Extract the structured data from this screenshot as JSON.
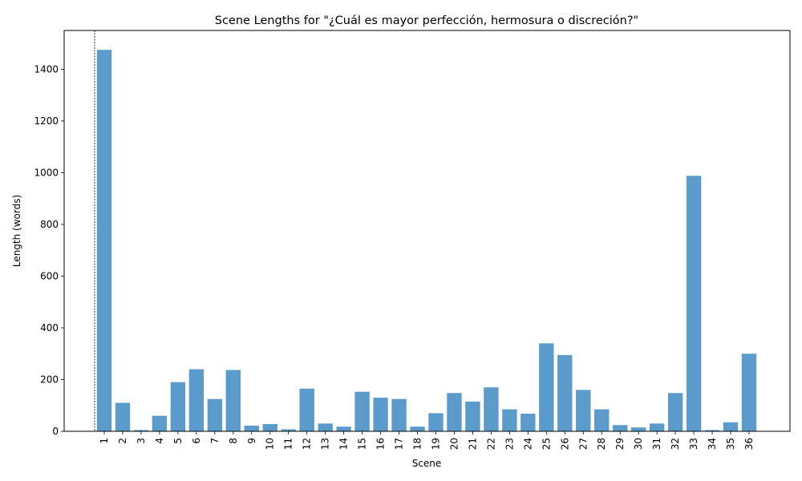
{
  "chart_data": {
    "type": "bar",
    "title": "Scene Lengths for \"¿Cuál es mayor perfección, hermosura o discreción?\"",
    "xlabel": "Scene",
    "ylabel": "Length (words)",
    "categories": [
      "1",
      "2",
      "3",
      "4",
      "5",
      "6",
      "7",
      "8",
      "9",
      "10",
      "11",
      "12",
      "13",
      "14",
      "15",
      "16",
      "17",
      "18",
      "19",
      "20",
      "21",
      "22",
      "23",
      "24",
      "25",
      "26",
      "27",
      "28",
      "29",
      "30",
      "31",
      "32",
      "33",
      "34",
      "35",
      "36"
    ],
    "values": [
      1475,
      110,
      5,
      60,
      190,
      240,
      125,
      237,
      22,
      28,
      8,
      165,
      30,
      18,
      153,
      130,
      125,
      18,
      70,
      148,
      115,
      170,
      85,
      68,
      340,
      295,
      160,
      85,
      24,
      15,
      30,
      148,
      988,
      5,
      35,
      300
    ],
    "ylim": [
      0,
      1550
    ],
    "yticks": [
      0,
      200,
      400,
      600,
      800,
      1000,
      1200,
      1400
    ],
    "bar_color": "#5b9bcc",
    "marker_line": "dashed vertical line before scene 1",
    "grid": false,
    "legend": "none"
  }
}
